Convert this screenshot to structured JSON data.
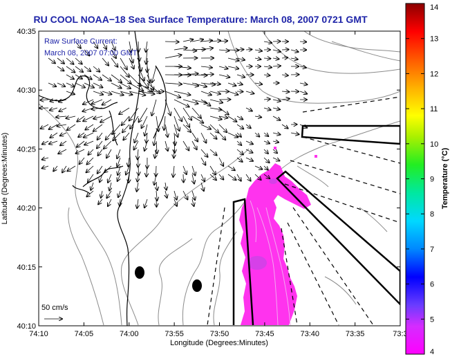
{
  "title": "RU COOL  NOAA−18  Sea Surface Temperature:  March 08, 2007 0721 GMT",
  "legend": {
    "line1": "Raw Surface Current:",
    "line2": "March 08, 2007 07:00 GMT",
    "scale_label": "50 cm/s"
  },
  "axes": {
    "xlabel": "Longitude (Degrees:Minutes)",
    "ylabel": "Latitude (Degrees:Minutes)",
    "x_ticks": [
      "74:10",
      "74:05",
      "74:00",
      "73:55",
      "73:50",
      "73:45",
      "73:40",
      "73:35",
      "73:3"
    ],
    "y_ticks": [
      "40:35",
      "40:30",
      "40:25",
      "40:20",
      "40:15",
      "40:10"
    ]
  },
  "colorbar": {
    "title": "Temperature (°C)",
    "ticks": [
      "14",
      "13",
      "12",
      "11",
      "10",
      "9",
      "8",
      "7",
      "6",
      "5",
      "4"
    ],
    "min": 4,
    "max": 14
  },
  "colors": {
    "title": "#1e24a8",
    "sst_patch": "#ff33ee",
    "sst_dark": "#d640e8",
    "vectors": "#000000",
    "bathymetry": "#888888"
  }
}
